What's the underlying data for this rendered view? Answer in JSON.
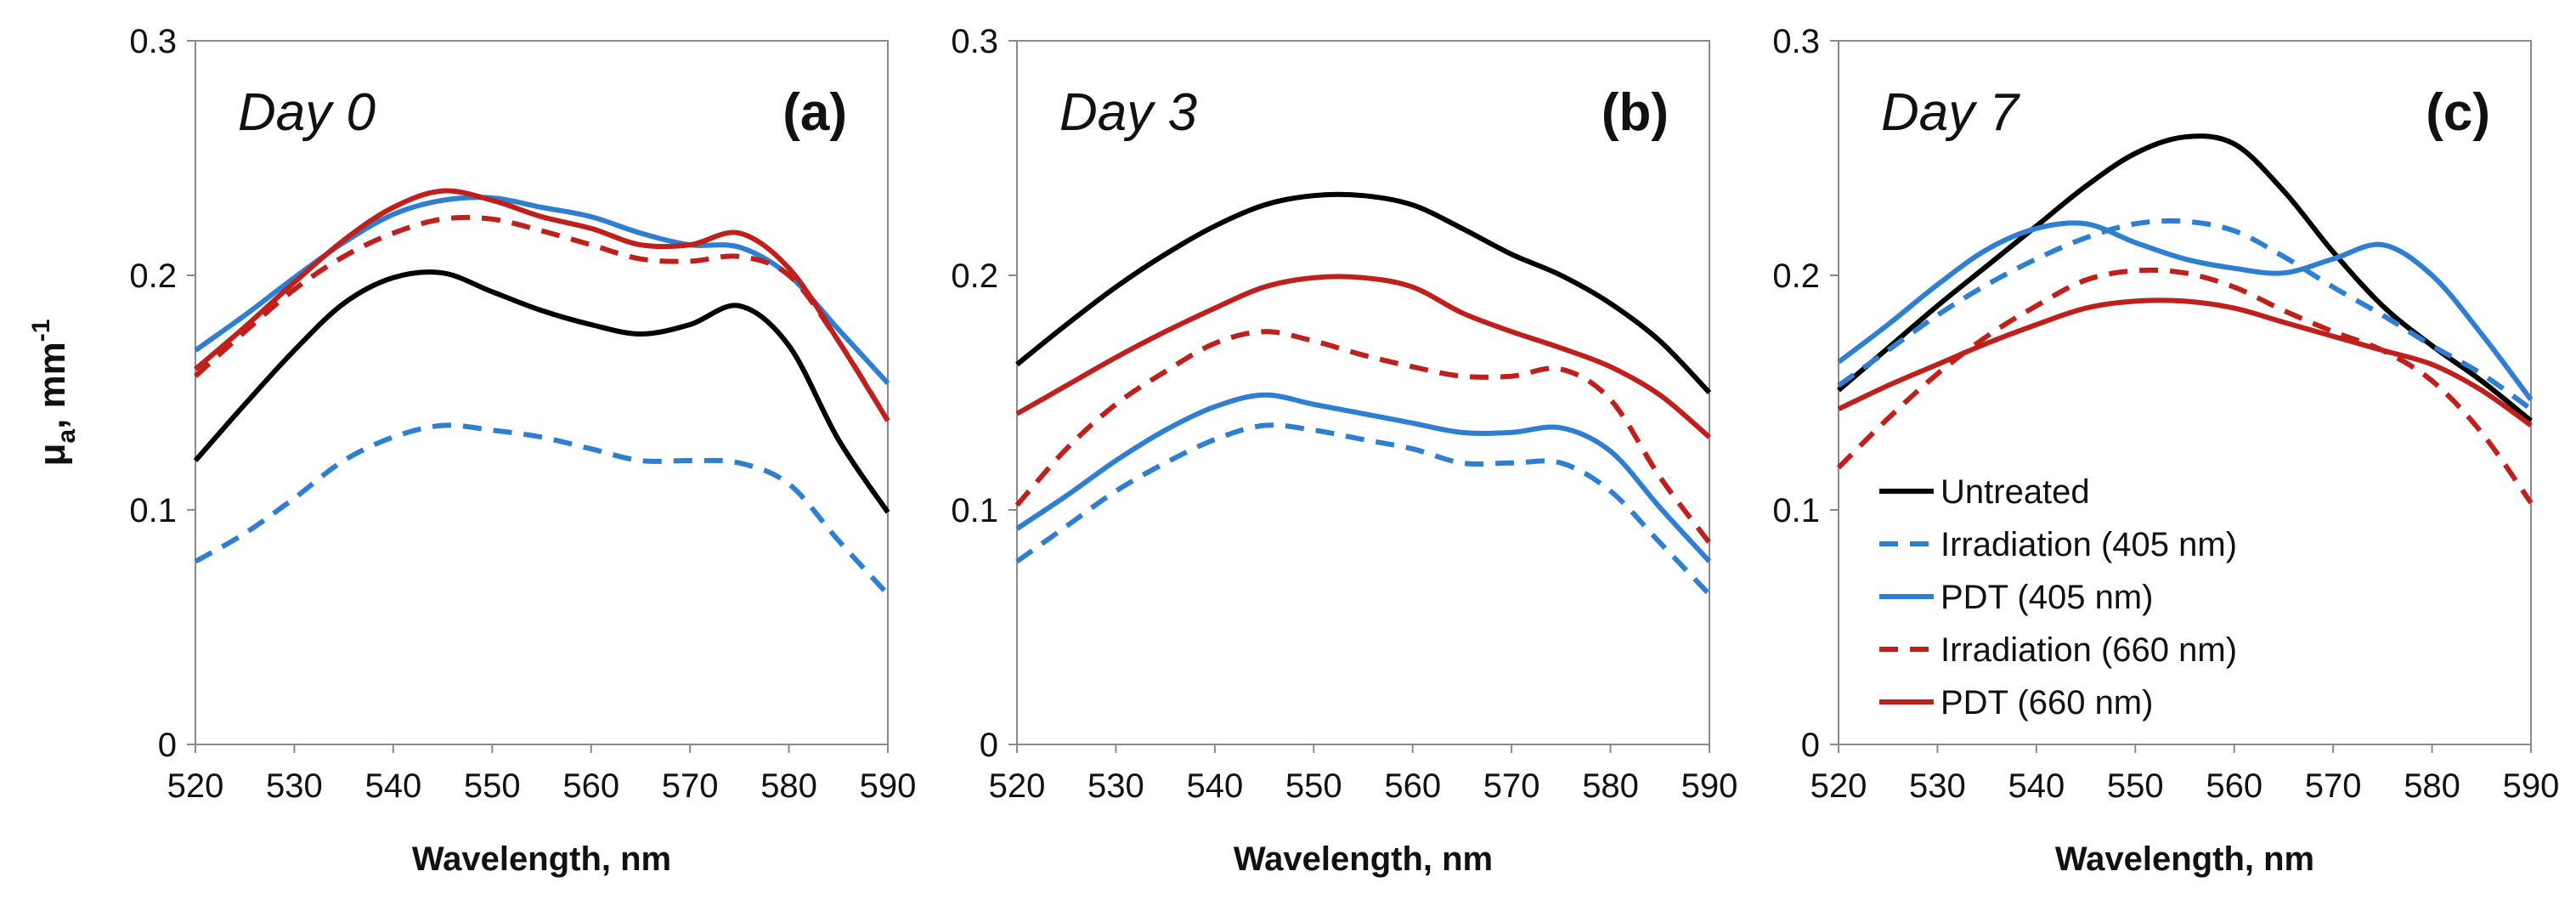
{
  "chart_data": {
    "type": "line",
    "y_axis_label": {
      "symbol": "μ",
      "subscript": "a",
      "unit": ", mm",
      "superscript": "-1"
    },
    "x_ticks": [
      520,
      530,
      540,
      550,
      560,
      570,
      580,
      590
    ],
    "y_ticks": [
      "0",
      "0.1",
      "0.2",
      "0.3"
    ],
    "xlim": [
      520,
      590
    ],
    "ylim": [
      0,
      0.3
    ],
    "series_styles": [
      {
        "name": "Untreated",
        "color": "#000000",
        "dash": "solid"
      },
      {
        "name": "Irradiation (405 nm)",
        "color": "#2e7fd1",
        "dash": "dashed"
      },
      {
        "name": "PDT (405 nm)",
        "color": "#2e7fd1",
        "dash": "solid"
      },
      {
        "name": "Irradiation (660 nm)",
        "color": "#c0201c",
        "dash": "dashed"
      },
      {
        "name": "PDT (660 nm)",
        "color": "#c0201c",
        "dash": "solid"
      }
    ],
    "legend_panel": 2,
    "panels": [
      {
        "day_label": "Day 0",
        "tag": "(a)",
        "xlabel": "Wavelength, nm",
        "x": [
          520,
          525,
          530,
          535,
          540,
          545,
          550,
          555,
          560,
          565,
          570,
          575,
          580,
          585,
          590
        ],
        "series": [
          {
            "name": "Untreated",
            "values": [
              0.121,
              0.145,
              0.168,
              0.188,
              0.199,
              0.201,
              0.193,
              0.185,
              0.179,
              0.175,
              0.179,
              0.187,
              0.17,
              0.13,
              0.099
            ]
          },
          {
            "name": "Irradiation (405 nm)",
            "values": [
              0.078,
              0.09,
              0.105,
              0.121,
              0.131,
              0.136,
              0.134,
              0.131,
              0.126,
              0.121,
              0.121,
              0.12,
              0.111,
              0.087,
              0.064
            ]
          },
          {
            "name": "PDT (405 nm)",
            "values": [
              0.168,
              0.183,
              0.199,
              0.214,
              0.226,
              0.232,
              0.233,
              0.229,
              0.225,
              0.218,
              0.213,
              0.212,
              0.2,
              0.177,
              0.154
            ]
          },
          {
            "name": "Irradiation (660 nm)",
            "values": [
              0.157,
              0.176,
              0.194,
              0.208,
              0.218,
              0.224,
              0.224,
              0.219,
              0.213,
              0.207,
              0.206,
              0.208,
              0.2,
              0.172,
              0.138
            ]
          },
          {
            "name": "PDT (660 nm)",
            "values": [
              0.16,
              0.178,
              0.197,
              0.215,
              0.229,
              0.236,
              0.232,
              0.225,
              0.22,
              0.213,
              0.213,
              0.218,
              0.203,
              0.172,
              0.138
            ]
          }
        ]
      },
      {
        "day_label": "Day 3",
        "tag": "(b)",
        "xlabel": "Wavelength, nm",
        "x": [
          520,
          525,
          530,
          535,
          540,
          545,
          550,
          555,
          560,
          565,
          570,
          575,
          580,
          585,
          590
        ],
        "series": [
          {
            "name": "Untreated",
            "values": [
              0.162,
              0.179,
              0.195,
              0.209,
              0.221,
              0.23,
              0.234,
              0.234,
              0.23,
              0.22,
              0.209,
              0.2,
              0.188,
              0.172,
              0.15
            ]
          },
          {
            "name": "Irradiation (405 nm)",
            "values": [
              0.078,
              0.093,
              0.108,
              0.12,
              0.13,
              0.136,
              0.134,
              0.13,
              0.126,
              0.12,
              0.12,
              0.12,
              0.108,
              0.086,
              0.064
            ]
          },
          {
            "name": "PDT (405 nm)",
            "values": [
              0.092,
              0.106,
              0.121,
              0.134,
              0.144,
              0.149,
              0.145,
              0.141,
              0.137,
              0.133,
              0.133,
              0.135,
              0.125,
              0.101,
              0.078
            ]
          },
          {
            "name": "Irradiation (660 nm)",
            "values": [
              0.102,
              0.126,
              0.145,
              0.159,
              0.171,
              0.176,
              0.172,
              0.166,
              0.161,
              0.157,
              0.157,
              0.16,
              0.147,
              0.114,
              0.086
            ]
          },
          {
            "name": "PDT (660 nm)",
            "values": [
              0.141,
              0.153,
              0.165,
              0.176,
              0.186,
              0.195,
              0.199,
              0.199,
              0.195,
              0.184,
              0.176,
              0.169,
              0.161,
              0.149,
              0.131
            ]
          }
        ]
      },
      {
        "day_label": "Day 7",
        "tag": "(c)",
        "xlabel": "Wavelength, nm",
        "x": [
          520,
          525,
          530,
          535,
          540,
          545,
          550,
          555,
          560,
          565,
          570,
          575,
          580,
          585,
          590
        ],
        "series": [
          {
            "name": "Untreated",
            "values": [
              0.151,
              0.169,
              0.187,
              0.204,
              0.221,
              0.238,
              0.252,
              0.259,
              0.256,
              0.236,
              0.21,
              0.187,
              0.17,
              0.155,
              0.138
            ]
          },
          {
            "name": "Irradiation (405 nm)",
            "values": [
              0.153,
              0.168,
              0.183,
              0.196,
              0.207,
              0.216,
              0.222,
              0.223,
              0.219,
              0.208,
              0.195,
              0.183,
              0.17,
              0.158,
              0.143
            ]
          },
          {
            "name": "PDT (405 nm)",
            "values": [
              0.163,
              0.179,
              0.196,
              0.211,
              0.22,
              0.222,
              0.214,
              0.207,
              0.203,
              0.201,
              0.207,
              0.213,
              0.2,
              0.175,
              0.147
            ]
          },
          {
            "name": "Irradiation (660 nm)",
            "values": [
              0.118,
              0.139,
              0.158,
              0.174,
              0.187,
              0.198,
              0.202,
              0.201,
              0.195,
              0.185,
              0.176,
              0.168,
              0.155,
              0.133,
              0.103
            ]
          },
          {
            "name": "PDT (660 nm)",
            "values": [
              0.143,
              0.153,
              0.162,
              0.171,
              0.179,
              0.186,
              0.189,
              0.189,
              0.186,
              0.18,
              0.174,
              0.168,
              0.162,
              0.151,
              0.136
            ]
          }
        ]
      }
    ]
  }
}
